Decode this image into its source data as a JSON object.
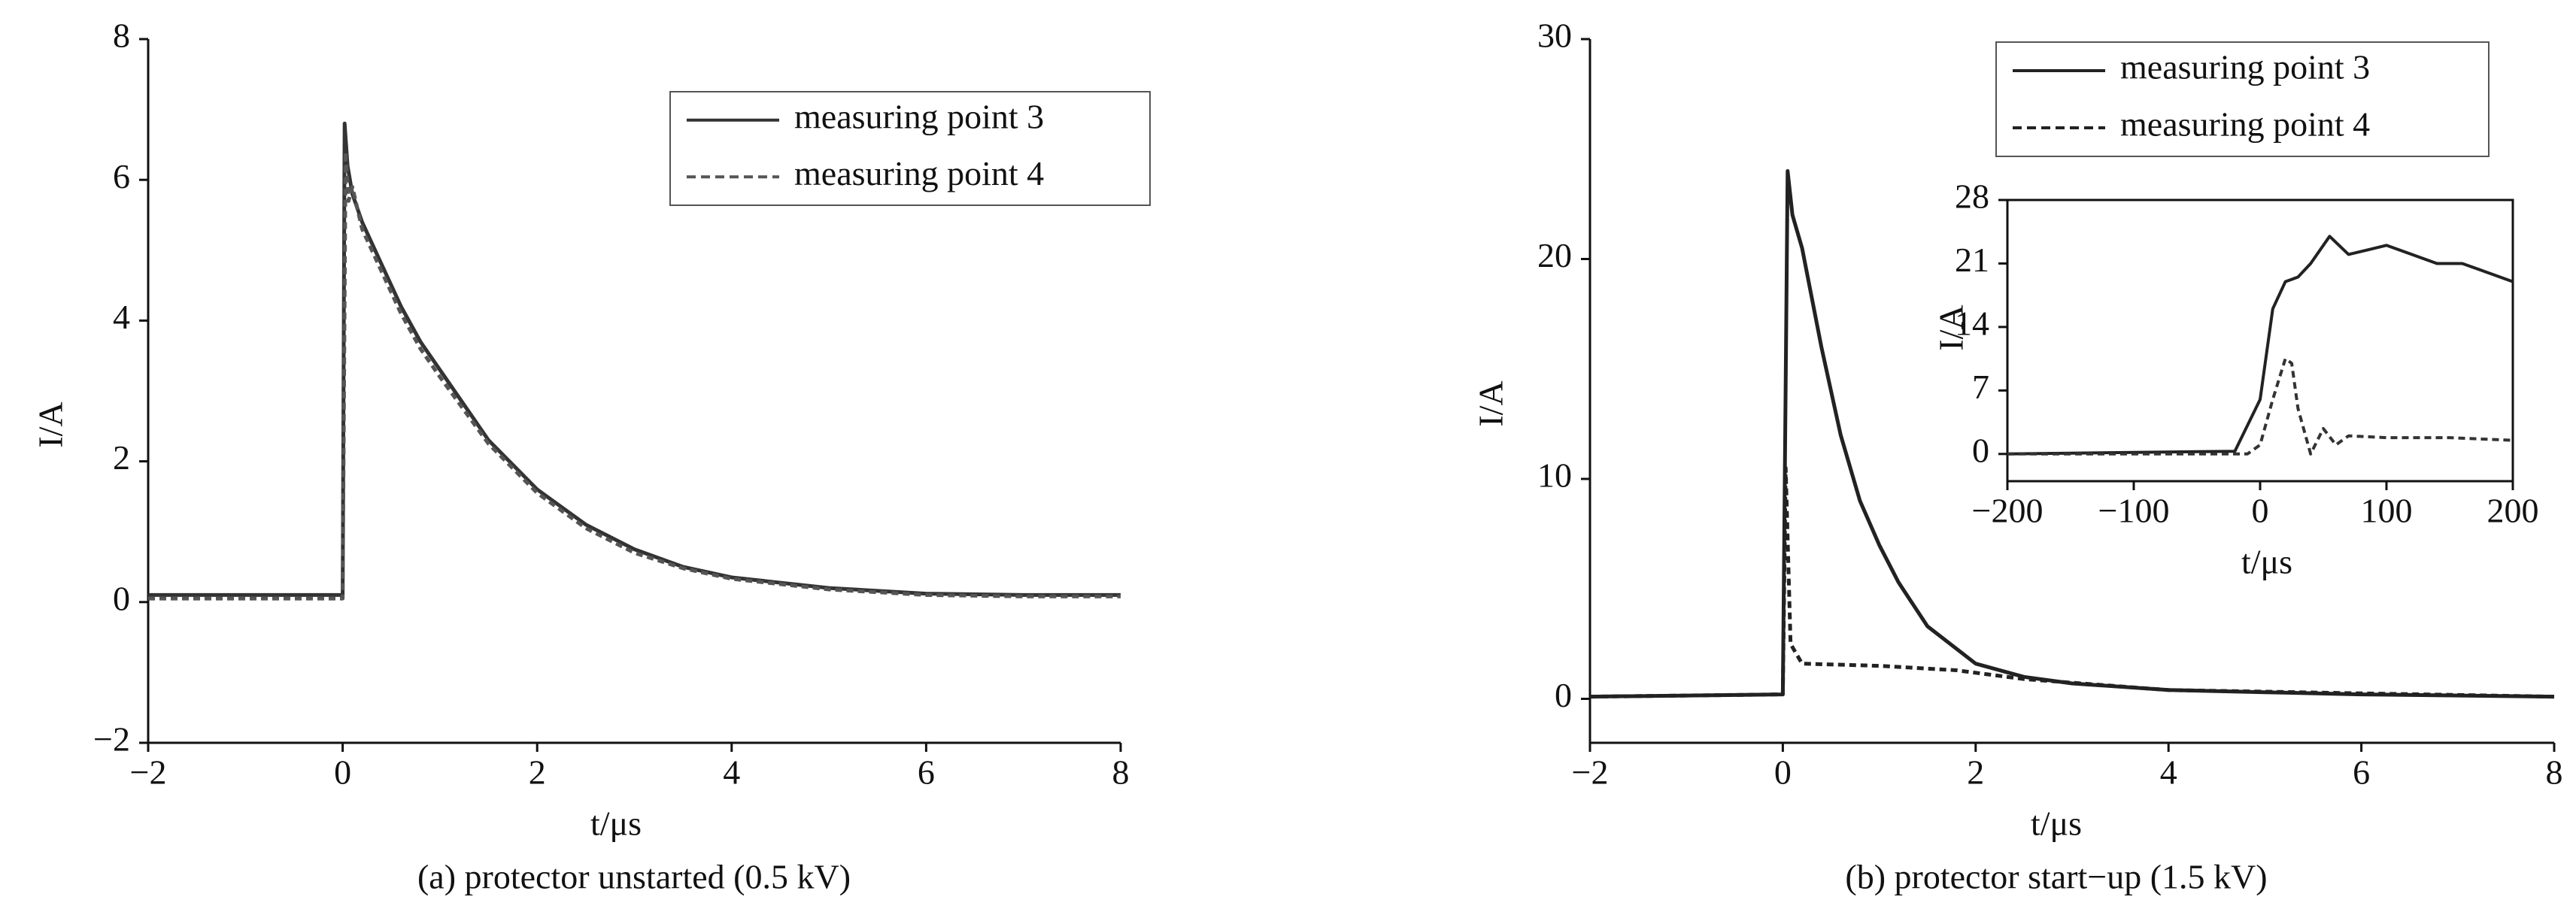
{
  "chart_data": [
    {
      "type": "line",
      "caption": "(a) protector unstarted (0.5 kV)",
      "xlabel": "t/μs",
      "ylabel": "I/A",
      "xlim": [
        -2,
        8
      ],
      "ylim": [
        -2,
        8
      ],
      "xticks": [
        {
          "value": -2,
          "label": "−2"
        },
        0,
        2,
        4,
        6,
        8
      ],
      "yticks": [
        {
          "value": -2,
          "label": "−2"
        },
        0,
        2,
        4,
        6,
        8
      ],
      "legend": "upper right",
      "series": [
        {
          "name": "measuring point 3",
          "color": "#333333",
          "dash": false,
          "x": [
            -2,
            0,
            0.02,
            0.05,
            0.1,
            0.2,
            0.4,
            0.6,
            0.8,
            1,
            1.5,
            2,
            2.5,
            3,
            3.5,
            4,
            5,
            6,
            7,
            8
          ],
          "values": [
            0.1,
            0.1,
            6.8,
            6.2,
            5.8,
            5.4,
            4.8,
            4.2,
            3.7,
            3.3,
            2.3,
            1.6,
            1.1,
            0.75,
            0.5,
            0.35,
            0.2,
            0.12,
            0.1,
            0.1
          ]
        },
        {
          "name": "measuring point 4",
          "color": "#555555",
          "dash": true,
          "x": [
            -2,
            0,
            0.03,
            0.06,
            0.1,
            0.2,
            0.4,
            0.6,
            0.8,
            1,
            1.5,
            2,
            2.5,
            3,
            3.5,
            4,
            5,
            6,
            7,
            8
          ],
          "values": [
            0.05,
            0.05,
            6.4,
            5.7,
            5.9,
            5.3,
            4.7,
            4.1,
            3.6,
            3.2,
            2.25,
            1.55,
            1.05,
            0.7,
            0.48,
            0.33,
            0.18,
            0.1,
            0.08,
            0.08
          ]
        }
      ]
    },
    {
      "type": "line",
      "caption": "(b) protector start−up (1.5 kV)",
      "xlabel": "t/μs",
      "ylabel": "I/A",
      "xlim": [
        -2,
        8
      ],
      "ylim": [
        -2,
        30
      ],
      "xticks": [
        {
          "value": -2,
          "label": "−2"
        },
        0,
        2,
        4,
        6,
        8
      ],
      "yticks": [
        0,
        10,
        20,
        30
      ],
      "legend": "upper right",
      "series": [
        {
          "name": "measuring point 3",
          "color": "#222222",
          "dash": false,
          "x": [
            -2,
            0,
            0.05,
            0.1,
            0.2,
            0.4,
            0.6,
            0.8,
            1,
            1.2,
            1.5,
            2,
            2.5,
            3,
            4,
            5,
            6,
            8
          ],
          "values": [
            0.1,
            0.2,
            24,
            22,
            20.5,
            16,
            12,
            9,
            7,
            5.3,
            3.3,
            1.6,
            1.0,
            0.7,
            0.4,
            0.3,
            0.2,
            0.1
          ]
        },
        {
          "name": "measuring point 4",
          "color": "#222222",
          "dash": true,
          "x": [
            -2,
            0,
            0.03,
            0.08,
            0.2,
            1,
            1.8,
            2.5,
            4,
            8
          ],
          "values": [
            0.1,
            0.2,
            10.5,
            2.5,
            1.6,
            1.5,
            1.3,
            0.9,
            0.4,
            0.1
          ]
        }
      ]
    },
    {
      "type": "line",
      "xlabel": "t/μs",
      "ylabel": "I/A",
      "xlim": [
        -200,
        200
      ],
      "ylim": [
        -3,
        28
      ],
      "xticks": [
        {
          "value": -200,
          "label": "−200"
        },
        {
          "value": -100,
          "label": "−100"
        },
        0,
        100,
        200
      ],
      "yticks": [
        0,
        7,
        14,
        21,
        28
      ],
      "series": [
        {
          "color": "#222222",
          "dash": false,
          "x": [
            -200,
            -20,
            0,
            10,
            20,
            30,
            40,
            55,
            70,
            85,
            100,
            120,
            140,
            160,
            180,
            200
          ],
          "values": [
            0,
            0.3,
            6,
            16,
            19,
            19.5,
            21,
            24,
            22,
            22.5,
            23,
            22,
            21,
            21,
            20,
            19
          ]
        },
        {
          "color": "#333333",
          "dash": true,
          "x": [
            -200,
            -10,
            0,
            10,
            20,
            25,
            30,
            40,
            50,
            60,
            70,
            100,
            150,
            200
          ],
          "values": [
            0,
            0,
            1,
            6,
            10.5,
            10,
            5,
            0,
            2.8,
            1,
            2,
            1.8,
            1.8,
            1.5
          ]
        }
      ]
    }
  ]
}
